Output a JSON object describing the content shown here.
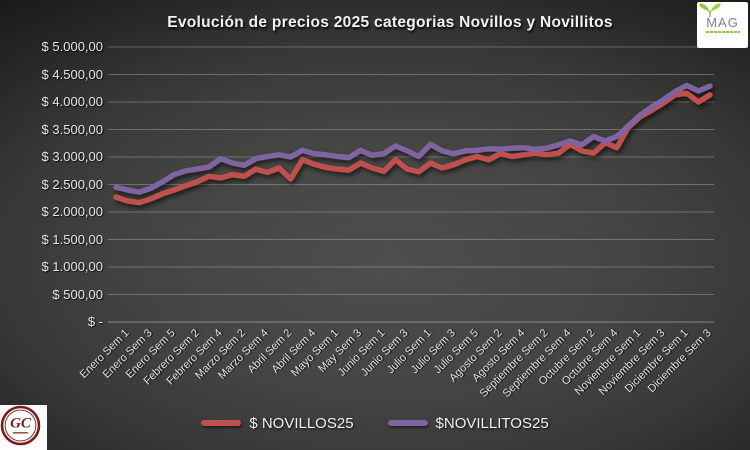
{
  "header": {
    "title": "Evolución de precios 2025 categorias Novillos y Novillitos"
  },
  "logos": {
    "mag": {
      "text": "MAG",
      "accent_green": "#8dc63f",
      "text_gray": "#808285"
    },
    "gc": {
      "text": "GC",
      "maroon": "#7a1d1d"
    }
  },
  "chart_data": {
    "type": "line",
    "title": "Evolución de precios 2025 categorias Novillos y Novillitos",
    "ylabel": "",
    "xlabel": "",
    "ylim": [
      0,
      5000
    ],
    "y_step": 500,
    "grid": true,
    "legend_position": "bottom",
    "y_tick_labels": [
      "$ 5.000,00",
      "$ 4.500,00",
      "$ 4.000,00",
      "$ 3.500,00",
      "$ 3.000,00",
      "$ 2.500,00",
      "$ 2.000,00",
      "$ 1.500,00",
      "$ 1.000,00",
      "$ 500,00",
      "$ -"
    ],
    "x_tick_labels": [
      "Enero Sem 1",
      "Enero Sem 3",
      "Enero Sem 5",
      "Febrero Sem 2",
      "Febrero Sem 4",
      "Marzo Sem 2",
      "Marzo Sem 4",
      "Abril Sem 2",
      "Abril Sem 4",
      "Mayo Sem 1",
      "May Sem 3",
      "Junio Sem 1",
      "Junio Sem 3",
      "Julio Sem 1",
      "Julio Sem 3",
      "Julio Sem 5",
      "Agosto Sem 2",
      "Agosto Sem 4",
      "Septiembre Sem 2",
      "Septiembre Sem 4",
      "Octubre Sem 2",
      "Octubre Sem 4",
      "Noviembre Sem 1",
      "Noviembre Sem 3",
      "Diciembre Sem 1",
      "Diciembre Sem 3"
    ],
    "points_per_label": 2,
    "n_points": 52,
    "series": [
      {
        "name": "$ NOVILLOS25",
        "color": "#C0504D",
        "values": [
          2270,
          2200,
          2170,
          2240,
          2330,
          2400,
          2480,
          2550,
          2650,
          2620,
          2680,
          2650,
          2780,
          2720,
          2800,
          2600,
          2950,
          2870,
          2810,
          2780,
          2760,
          2890,
          2800,
          2740,
          2950,
          2780,
          2730,
          2890,
          2800,
          2860,
          2950,
          3010,
          2950,
          3060,
          3010,
          3040,
          3070,
          3040,
          3070,
          3230,
          3110,
          3070,
          3260,
          3170,
          3540,
          3730,
          3850,
          3980,
          4130,
          4160,
          4000,
          4130
        ]
      },
      {
        "name": "$NOVILLITOS25",
        "color": "#8064A2",
        "values": [
          2450,
          2400,
          2360,
          2430,
          2550,
          2680,
          2750,
          2780,
          2820,
          2970,
          2890,
          2850,
          2970,
          3010,
          3040,
          3000,
          3120,
          3060,
          3040,
          3010,
          2990,
          3120,
          3030,
          3060,
          3200,
          3110,
          3010,
          3230,
          3110,
          3060,
          3110,
          3120,
          3150,
          3140,
          3160,
          3170,
          3140,
          3160,
          3220,
          3290,
          3220,
          3370,
          3290,
          3370,
          3570,
          3760,
          3910,
          4040,
          4190,
          4300,
          4200,
          4290
        ]
      }
    ]
  }
}
